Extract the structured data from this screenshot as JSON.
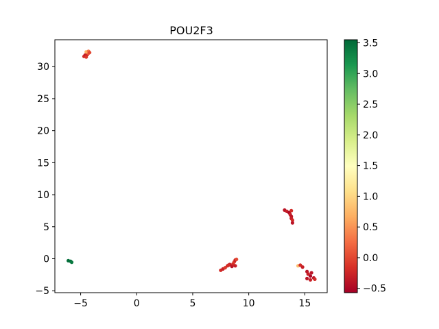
{
  "chart_data": {
    "type": "scatter",
    "title": "POU2F3",
    "xlabel": "",
    "ylabel": "",
    "xlim": [
      -7.3,
      17.0
    ],
    "ylim": [
      -5.3,
      34.2
    ],
    "xticks": [
      -5,
      0,
      5,
      10,
      15
    ],
    "yticks": [
      -5,
      0,
      5,
      10,
      15,
      20,
      25,
      30
    ],
    "grid": false,
    "legend": "none",
    "colorbar": {
      "cmap": "RdYlGn",
      "vmin": -0.57,
      "vmax": 3.55,
      "ticks": [
        -0.5,
        0.0,
        0.5,
        1.0,
        1.5,
        2.0,
        2.5,
        3.0,
        3.5
      ],
      "tick_labels": [
        "−0.5",
        "0.0",
        "0.5",
        "1.0",
        "1.5",
        "2.0",
        "2.5",
        "3.0",
        "3.5"
      ]
    },
    "points": [
      {
        "x": -4.7,
        "y": 31.6,
        "v": -0.2
      },
      {
        "x": -4.6,
        "y": 31.8,
        "v": -0.3
      },
      {
        "x": -4.5,
        "y": 31.5,
        "v": -0.1
      },
      {
        "x": -4.4,
        "y": 31.9,
        "v": -0.2
      },
      {
        "x": -4.3,
        "y": 32.1,
        "v": 0.1
      },
      {
        "x": -4.5,
        "y": 32.3,
        "v": 0.7
      },
      {
        "x": -4.3,
        "y": 32.4,
        "v": 0.3
      },
      {
        "x": -4.2,
        "y": 32.2,
        "v": 0.0
      },
      {
        "x": -6.1,
        "y": -0.3,
        "v": 3.5
      },
      {
        "x": -5.9,
        "y": -0.4,
        "v": 3.5
      },
      {
        "x": -5.8,
        "y": -0.55,
        "v": 3.4
      },
      {
        "x": 7.5,
        "y": -1.8,
        "v": -0.2
      },
      {
        "x": 7.7,
        "y": -1.6,
        "v": -0.3
      },
      {
        "x": 7.9,
        "y": -1.4,
        "v": -0.1
      },
      {
        "x": 8.1,
        "y": -1.1,
        "v": -0.2
      },
      {
        "x": 8.3,
        "y": -0.9,
        "v": -0.3
      },
      {
        "x": 8.5,
        "y": -1.2,
        "v": -0.4
      },
      {
        "x": 8.6,
        "y": -0.8,
        "v": -0.2
      },
      {
        "x": 8.7,
        "y": -0.5,
        "v": -0.1
      },
      {
        "x": 8.8,
        "y": -0.2,
        "v": -0.3
      },
      {
        "x": 8.9,
        "y": -0.1,
        "v": 0.0
      },
      {
        "x": 8.8,
        "y": -1.1,
        "v": -0.3
      },
      {
        "x": 8.2,
        "y": -1.0,
        "v": -0.2
      },
      {
        "x": 13.2,
        "y": 7.6,
        "v": -0.4
      },
      {
        "x": 13.4,
        "y": 7.4,
        "v": -0.3
      },
      {
        "x": 13.6,
        "y": 7.2,
        "v": -0.5
      },
      {
        "x": 13.8,
        "y": 7.5,
        "v": -0.2
      },
      {
        "x": 13.7,
        "y": 6.9,
        "v": -0.3
      },
      {
        "x": 13.8,
        "y": 6.6,
        "v": -0.4
      },
      {
        "x": 13.8,
        "y": 6.3,
        "v": -0.3
      },
      {
        "x": 13.9,
        "y": 6.0,
        "v": -0.2
      },
      {
        "x": 13.9,
        "y": 5.6,
        "v": -0.4
      },
      {
        "x": 14.4,
        "y": -1.1,
        "v": 0.8
      },
      {
        "x": 14.6,
        "y": -1.0,
        "v": -0.2
      },
      {
        "x": 14.8,
        "y": -1.3,
        "v": -0.3
      },
      {
        "x": 15.2,
        "y": -2.0,
        "v": -0.4
      },
      {
        "x": 15.3,
        "y": -2.4,
        "v": -0.3
      },
      {
        "x": 15.5,
        "y": -2.7,
        "v": -0.5
      },
      {
        "x": 15.2,
        "y": -3.1,
        "v": -0.4
      },
      {
        "x": 15.5,
        "y": -3.3,
        "v": -0.3
      },
      {
        "x": 15.8,
        "y": -3.0,
        "v": -0.4
      },
      {
        "x": 15.9,
        "y": -3.2,
        "v": -0.2
      },
      {
        "x": 15.6,
        "y": -2.2,
        "v": -0.4
      }
    ]
  }
}
